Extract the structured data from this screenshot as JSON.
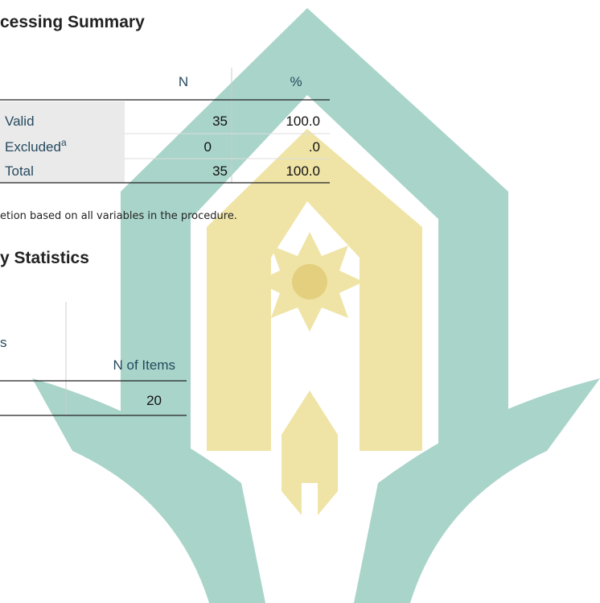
{
  "section1": {
    "title": "cessing Summary",
    "table": {
      "header": [
        "N",
        "%"
      ],
      "rows": [
        {
          "label": "Valid",
          "n": "35",
          "percent": "100.0"
        },
        {
          "label": "Excluded",
          "marker": "a",
          "n": "0",
          "percent": ".0"
        },
        {
          "label": "Total",
          "n": "35",
          "percent": "100.0"
        }
      ]
    },
    "footnote": "etion based on all variables in the procedure."
  },
  "section2": {
    "title": "y Statistics",
    "table": {
      "header": [
        "s",
        "N of Items"
      ],
      "row": [
        "20"
      ]
    }
  }
}
